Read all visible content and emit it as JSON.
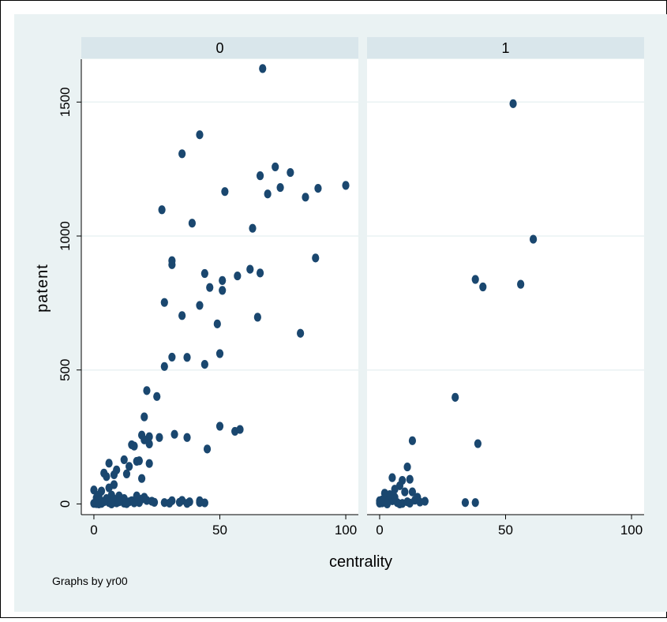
{
  "chart_data": {
    "type": "scatter",
    "xlabel": "centrality",
    "ylabel": "patent",
    "note": "Graphs by yr00",
    "xlim": [
      -5,
      105
    ],
    "ylim": [
      -40,
      1660
    ],
    "xticks": [
      0,
      50,
      100
    ],
    "yticks": [
      0,
      500,
      1000,
      1500
    ],
    "grid": true,
    "colors": {
      "outer_bg": "#eaf2f3",
      "plot_bg": "#ffffff",
      "strip_bg": "#d9e6eb",
      "marker": "#1a476f",
      "text": "#000000"
    },
    "panels": [
      {
        "label": "0",
        "points": [
          [
            67,
            1625
          ],
          [
            42,
            1378
          ],
          [
            35,
            1307
          ],
          [
            72,
            1258
          ],
          [
            78,
            1237
          ],
          [
            66,
            1225
          ],
          [
            74,
            1181
          ],
          [
            89,
            1178
          ],
          [
            100,
            1189
          ],
          [
            52,
            1166
          ],
          [
            69,
            1157
          ],
          [
            84,
            1145
          ],
          [
            27,
            1098
          ],
          [
            39,
            1048
          ],
          [
            63,
            1029
          ],
          [
            88,
            918
          ],
          [
            31,
            908
          ],
          [
            31,
            893
          ],
          [
            44,
            860
          ],
          [
            66,
            862
          ],
          [
            62,
            876
          ],
          [
            51,
            834
          ],
          [
            57,
            851
          ],
          [
            46,
            808
          ],
          [
            51,
            797
          ],
          [
            28,
            752
          ],
          [
            42,
            741
          ],
          [
            35,
            703
          ],
          [
            65,
            697
          ],
          [
            49,
            672
          ],
          [
            82,
            637
          ],
          [
            50,
            561
          ],
          [
            31,
            548
          ],
          [
            37,
            547
          ],
          [
            28,
            513
          ],
          [
            44,
            521
          ],
          [
            21,
            423
          ],
          [
            25,
            401
          ],
          [
            20,
            325
          ],
          [
            50,
            290
          ],
          [
            32,
            260
          ],
          [
            37,
            248
          ],
          [
            19,
            257
          ],
          [
            22,
            251
          ],
          [
            26,
            248
          ],
          [
            56,
            271
          ],
          [
            58,
            278
          ],
          [
            45,
            205
          ],
          [
            22,
            224
          ],
          [
            15,
            221
          ],
          [
            16,
            216
          ],
          [
            20,
            239
          ],
          [
            18,
            161
          ],
          [
            12,
            165
          ],
          [
            6,
            152
          ],
          [
            9,
            127
          ],
          [
            14,
            140
          ],
          [
            13,
            112
          ],
          [
            8,
            109
          ],
          [
            5,
            102
          ],
          [
            17,
            159
          ],
          [
            22,
            151
          ],
          [
            4,
            115
          ],
          [
            19,
            95
          ],
          [
            8,
            72
          ],
          [
            6,
            60
          ],
          [
            3,
            48
          ],
          [
            0,
            52
          ],
          [
            1,
            23
          ],
          [
            2,
            33
          ],
          [
            5,
            20
          ],
          [
            7,
            33
          ],
          [
            10,
            30
          ],
          [
            12,
            20
          ],
          [
            15,
            12
          ],
          [
            18,
            5
          ],
          [
            1,
            6
          ],
          [
            3,
            2
          ],
          [
            6,
            5
          ],
          [
            9,
            4
          ],
          [
            12,
            3
          ],
          [
            14,
            8
          ],
          [
            16,
            4
          ],
          [
            19,
            18
          ],
          [
            21,
            13
          ],
          [
            24,
            6
          ],
          [
            28,
            5
          ],
          [
            31,
            12
          ],
          [
            34,
            6
          ],
          [
            35,
            13
          ],
          [
            38,
            8
          ],
          [
            42,
            5
          ],
          [
            44,
            4
          ],
          [
            2,
            12
          ],
          [
            4,
            8
          ],
          [
            8,
            18
          ],
          [
            11,
            12
          ],
          [
            0,
            2
          ],
          [
            1,
            1
          ],
          [
            2,
            0
          ],
          [
            3,
            10
          ],
          [
            7,
            0
          ],
          [
            10,
            8
          ],
          [
            13,
            1
          ],
          [
            17,
            30
          ],
          [
            20,
            25
          ],
          [
            23,
            10
          ],
          [
            30,
            3
          ],
          [
            37,
            2
          ],
          [
            42,
            12
          ]
        ]
      },
      {
        "label": "1",
        "points": [
          [
            53,
            1494
          ],
          [
            61,
            988
          ],
          [
            38,
            838
          ],
          [
            41,
            810
          ],
          [
            56,
            820
          ],
          [
            30,
            398
          ],
          [
            39,
            225
          ],
          [
            13,
            236
          ],
          [
            11,
            138
          ],
          [
            9,
            88
          ],
          [
            12,
            92
          ],
          [
            5,
            98
          ],
          [
            8,
            68
          ],
          [
            10,
            45
          ],
          [
            6,
            55
          ],
          [
            13,
            45
          ],
          [
            15,
            25
          ],
          [
            3,
            30
          ],
          [
            4,
            15
          ],
          [
            2,
            8
          ],
          [
            1,
            4
          ],
          [
            0,
            12
          ],
          [
            2,
            20
          ],
          [
            5,
            12
          ],
          [
            7,
            5
          ],
          [
            9,
            2
          ],
          [
            11,
            8
          ],
          [
            14,
            14
          ],
          [
            16,
            7
          ],
          [
            18,
            10
          ],
          [
            0,
            3
          ],
          [
            1,
            15
          ],
          [
            3,
            0
          ],
          [
            6,
            25
          ],
          [
            8,
            0
          ],
          [
            12,
            3
          ],
          [
            34,
            5
          ],
          [
            38,
            5
          ],
          [
            4,
            35
          ],
          [
            2,
            40
          ]
        ]
      }
    ]
  }
}
